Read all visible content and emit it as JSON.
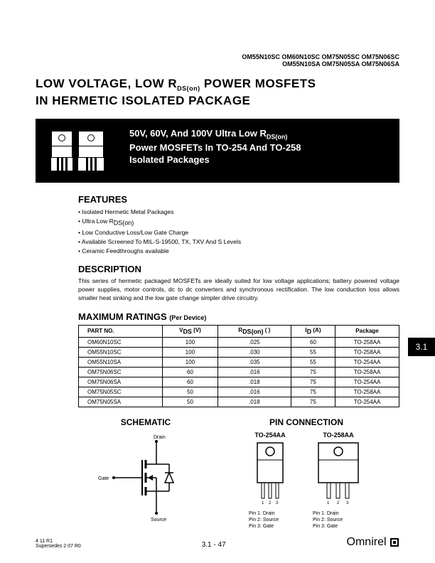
{
  "part_numbers_line1": "OM55N10SC  OM60N10SC  OM75N05SC  OM75N06SC",
  "part_numbers_line2": "OM55N10SA  OM75N05SA  OM75N06SA",
  "title_line1": "LOW VOLTAGE, LOW R",
  "title_sub1": "DS(on)",
  "title_line1b": " POWER MOSFETS",
  "title_line2": "IN HERMETIC ISOLATED PACKAGE",
  "hero_line1a": "50V, 60V, And 100V Ultra Low R",
  "hero_line1_sub": "DS(on)",
  "hero_line2": "Power MOSFETs In TO-254 And TO-258",
  "hero_line3": "Isolated Packages",
  "features_head": "FEATURES",
  "features": [
    "Isolated Hermetic Metal Packages",
    "Ultra Low R",
    "Low Conductive Loss/Low Gate Charge",
    "Available Screened To MIL-S-19500, TX, TXV And S Levels",
    "Ceramic Feedthroughs available"
  ],
  "features_1_sub": "DS(on)",
  "description_head": "DESCRIPTION",
  "description_text": "This series of hermetic packaged MOSFETs are ideally suited for low voltage applications; battery powered voltage power supplies, motor controls, dc to dc converters and synchronous rectification.  The low conduction loss allows smaller heat sinking and the low gate change simpler drive circuitry.",
  "ratings_head": "MAXIMUM RATINGS ",
  "ratings_sub": "(Per Device)",
  "table": {
    "columns": [
      "PART NO.",
      "V_DS (V)",
      "R_DS(on) ( )",
      "I_D (A)",
      "Package"
    ],
    "rows": [
      [
        "OM60N10SC",
        "100",
        ".025",
        "60",
        "TO-258AA"
      ],
      [
        "OM55N10SC",
        "100",
        ".030",
        "55",
        "TO-258AA"
      ],
      [
        "OM55N10SA",
        "100",
        ".035",
        "55",
        "TO-254AA"
      ],
      [
        "OM75N06SC",
        "60",
        ".016",
        "75",
        "TO-258AA"
      ],
      [
        "OM75N06SA",
        "60",
        ".018",
        "75",
        "TO-254AA"
      ],
      [
        "OM75N05SC",
        "50",
        ".016",
        "75",
        "TO-258AA"
      ],
      [
        "OM75N05SA",
        "50",
        ".018",
        "75",
        "TO-254AA"
      ]
    ]
  },
  "section_tab": "3.1",
  "schematic_title": "SCHEMATIC",
  "pinconn_title": "PIN CONNECTION",
  "schematic_labels": {
    "drain": "Drain",
    "gate": "Gate",
    "source": "Source"
  },
  "pkg1_label": "TO-254AA",
  "pkg2_label": "TO-258AA",
  "pin_nums": "1     2     3",
  "pin_map_1": "Pin 1:   Drain",
  "pin_map_2": "Pin 2:   Source",
  "pin_map_3": "Pin 3:   Gate",
  "footer_left_1": "4 11 R1",
  "footer_left_2": "Supersedes 2 07 R0",
  "footer_center": "3.1 - 47",
  "footer_right": "Omnirel",
  "colors": {
    "black": "#000000",
    "white": "#ffffff"
  }
}
